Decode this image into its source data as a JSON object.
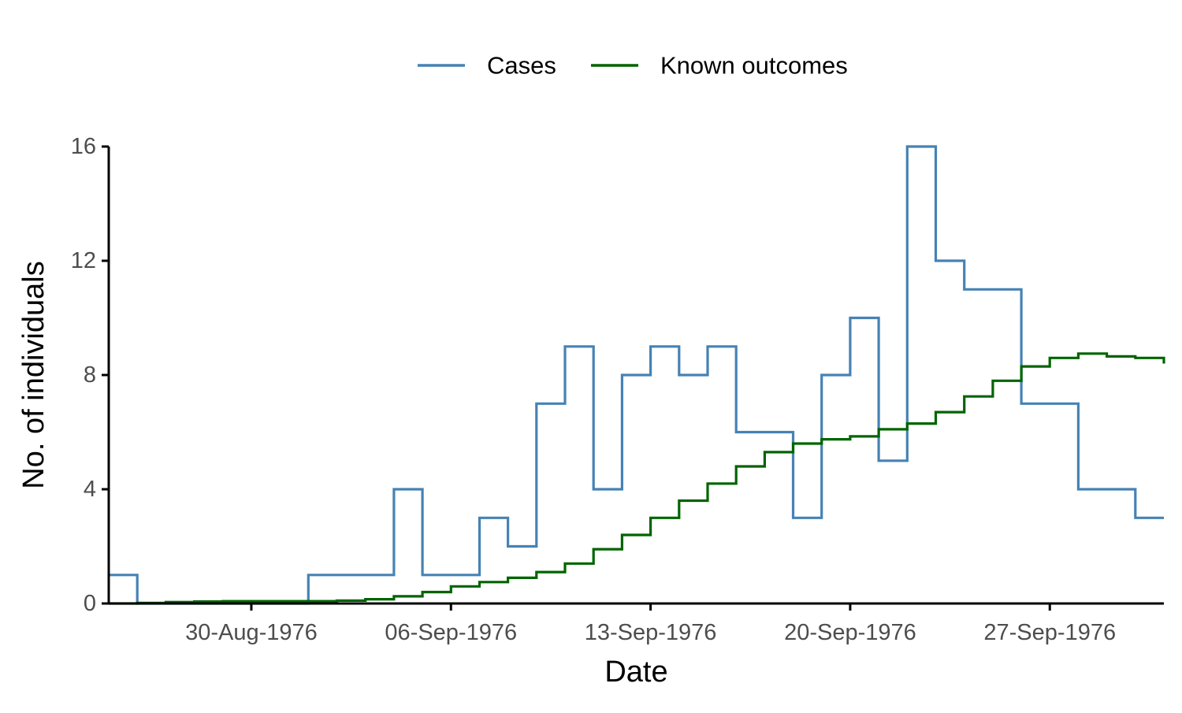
{
  "chart_data": {
    "type": "line",
    "step": true,
    "title": "",
    "xlabel": "Date",
    "ylabel": "No. of individuals",
    "x_start": "1976-08-25",
    "x_end": "1976-10-01",
    "ylim": [
      0,
      16
    ],
    "yticks": [
      0,
      4,
      8,
      12,
      16
    ],
    "xticks": [
      {
        "date": "1976-08-30",
        "label": "30-Aug-1976"
      },
      {
        "date": "1976-09-06",
        "label": "06-Sep-1976"
      },
      {
        "date": "1976-09-13",
        "label": "13-Sep-1976"
      },
      {
        "date": "1976-09-20",
        "label": "20-Sep-1976"
      },
      {
        "date": "1976-09-27",
        "label": "27-Sep-1976"
      }
    ],
    "grid": false,
    "legend_position": "top",
    "series": [
      {
        "name": "Cases",
        "color": "#4682b4",
        "x": [
          "1976-08-25",
          "1976-08-26",
          "1976-08-27",
          "1976-08-28",
          "1976-08-29",
          "1976-08-30",
          "1976-08-31",
          "1976-09-01",
          "1976-09-02",
          "1976-09-03",
          "1976-09-04",
          "1976-09-05",
          "1976-09-06",
          "1976-09-07",
          "1976-09-08",
          "1976-09-09",
          "1976-09-10",
          "1976-09-11",
          "1976-09-12",
          "1976-09-13",
          "1976-09-14",
          "1976-09-15",
          "1976-09-16",
          "1976-09-17",
          "1976-09-18",
          "1976-09-19",
          "1976-09-20",
          "1976-09-21",
          "1976-09-22",
          "1976-09-23",
          "1976-09-24",
          "1976-09-25",
          "1976-09-26",
          "1976-09-27",
          "1976-09-28",
          "1976-09-29",
          "1976-09-30",
          "1976-10-01"
        ],
        "values": [
          1,
          0,
          0,
          0,
          0,
          0,
          0,
          1,
          1,
          1,
          4,
          1,
          1,
          3,
          2,
          7,
          9,
          4,
          8,
          9,
          8,
          9,
          6,
          6,
          3,
          8,
          10,
          5,
          16,
          12,
          11,
          11,
          7,
          7,
          4,
          4,
          3,
          3
        ]
      },
      {
        "name": "Known outcomes",
        "color": "#006400",
        "x": [
          "1976-08-25",
          "1976-08-26",
          "1976-08-27",
          "1976-08-28",
          "1976-08-29",
          "1976-08-30",
          "1976-08-31",
          "1976-09-01",
          "1976-09-02",
          "1976-09-03",
          "1976-09-04",
          "1976-09-05",
          "1976-09-06",
          "1976-09-07",
          "1976-09-08",
          "1976-09-09",
          "1976-09-10",
          "1976-09-11",
          "1976-09-12",
          "1976-09-13",
          "1976-09-14",
          "1976-09-15",
          "1976-09-16",
          "1976-09-17",
          "1976-09-18",
          "1976-09-19",
          "1976-09-20",
          "1976-09-21",
          "1976-09-22",
          "1976-09-23",
          "1976-09-24",
          "1976-09-25",
          "1976-09-26",
          "1976-09-27",
          "1976-09-28",
          "1976-09-29",
          "1976-09-30",
          "1976-10-01"
        ],
        "values": [
          0,
          0.02,
          0.05,
          0.07,
          0.08,
          0.08,
          0.08,
          0.08,
          0.1,
          0.15,
          0.25,
          0.4,
          0.6,
          0.75,
          0.9,
          1.1,
          1.4,
          1.9,
          2.4,
          3.0,
          3.6,
          4.2,
          4.8,
          5.3,
          5.6,
          5.75,
          5.85,
          6.1,
          6.3,
          6.7,
          7.25,
          7.8,
          8.3,
          8.6,
          8.75,
          8.65,
          8.6,
          8.4
        ]
      }
    ]
  }
}
